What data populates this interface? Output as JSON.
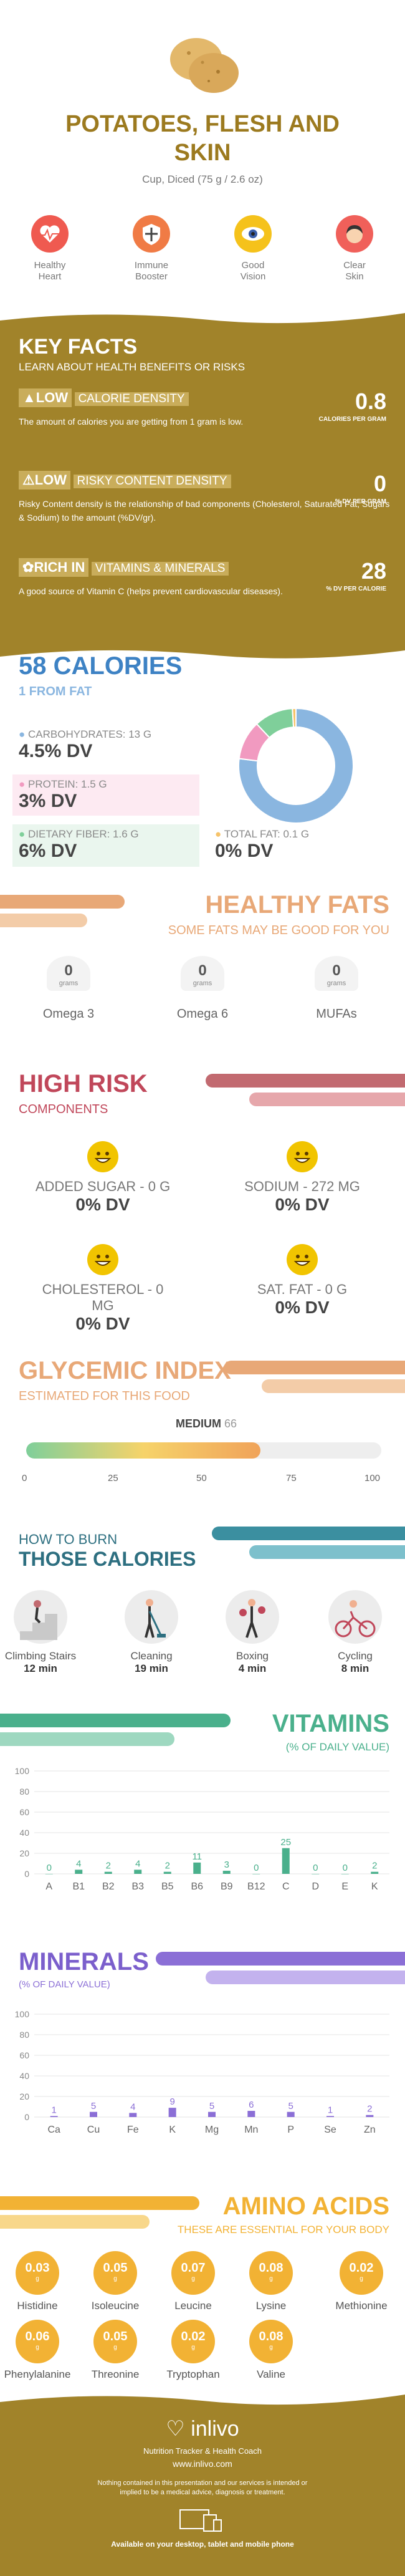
{
  "header": {
    "title_line1": "POTATOES, FLESH AND",
    "title_line2": "SKIN",
    "serving": "Cup, Diced (75 g / 2.6 oz)"
  },
  "benefits": [
    {
      "label": "Healthy\nHeart",
      "icon": "heart-monitor-icon",
      "color": "#ef5a50"
    },
    {
      "label": "Immune\nBooster",
      "icon": "shield-icon",
      "color": "#f07b45"
    },
    {
      "label": "Good\nVision",
      "icon": "eye-icon",
      "color": "#f5c21b"
    },
    {
      "label": "Clear\nSkin",
      "icon": "face-icon",
      "color": "#f0605a"
    }
  ],
  "key_facts": {
    "title": "KEY FACTS",
    "subtitle": "LEARN ABOUT HEALTH BENEFITS OR RISKS",
    "facts": [
      {
        "tag": "LOW",
        "label": "CALORIE DENSITY",
        "value": "0.8",
        "unit": "CALORIES PER GRAM",
        "desc": "The amount of calories you are getting from 1 gram is low.",
        "icon": "fire-icon"
      },
      {
        "tag": "LOW",
        "label": "RISKY CONTENT DENSITY",
        "value": "0",
        "unit": "% DV PER GRAM",
        "desc": "Risky Content density is the relationship of bad components (Cholesterol, Saturated Fat, Sugars & Sodium) to the amount (%DV/gr).",
        "icon": "warning-icon"
      },
      {
        "tag": "RICH  IN",
        "label": "VITAMINS & MINERALS",
        "value": "28",
        "unit": "% DV PER CALORIE",
        "desc": "A good source of Vitamin C (helps prevent cardiovascular diseases).",
        "icon": "leaf-icon"
      }
    ]
  },
  "calories": {
    "title": "58 CALORIES",
    "subtitle": "1 FROM FAT",
    "nutrients": [
      {
        "label": "CARBOHYDRATES: 13 g",
        "dv": "4.5% DV",
        "color": "#8ab6e0"
      },
      {
        "label": "PROTEIN: 1.5 g",
        "dv": "3% DV",
        "color": "#f19ac0"
      },
      {
        "label": "DIETARY FIBER: 1.6 g",
        "dv": "6% DV",
        "color": "#7fcf9a"
      },
      {
        "label": "TOTAL FAT: 0.1 g",
        "dv": "0% DV",
        "color": "#f6c36a"
      }
    ]
  },
  "chart_data": {
    "type": "pie",
    "categories": [
      "Carbohydrates",
      "Protein",
      "Dietary fiber",
      "Total fat"
    ],
    "values": [
      77,
      11,
      11,
      1
    ]
  },
  "healthy_fats": {
    "title": "HEALTHY FATS",
    "subtitle": "SOME FATS MAY BE GOOD FOR YOU",
    "items": [
      {
        "value": "0",
        "unit": "grams",
        "label": "Omega 3"
      },
      {
        "value": "0",
        "unit": "grams",
        "label": "Omega 6"
      },
      {
        "value": "0",
        "unit": "grams",
        "label": "MUFAs"
      }
    ]
  },
  "high_risk": {
    "title": "HIGH RISK",
    "subtitle": "COMPONENTS",
    "items": [
      {
        "label": "ADDED SUGAR - 0 g",
        "dv": "0% DV"
      },
      {
        "label": "SODIUM - 272 mg",
        "dv": "0% DV"
      },
      {
        "label": "CHOLESTEROL - 0 mg",
        "dv": "0% DV"
      },
      {
        "label": "SAT. FAT - 0 g",
        "dv": "0% DV"
      }
    ]
  },
  "glycemic": {
    "title": "GLYCEMIC INDEX",
    "subtitle": "ESTIMATED FOR THIS FOOD",
    "level": "MEDIUM",
    "value": "66",
    "fill_percent": 66,
    "ticks": [
      "0",
      "25",
      "50",
      "75",
      "100"
    ]
  },
  "burn": {
    "title1": "HOW TO BURN",
    "title2": "THOSE CALORIES",
    "items": [
      {
        "label": "Climbing Stairs",
        "time": "12 min",
        "icon": "stairs-icon"
      },
      {
        "label": "Cleaning",
        "time": "19 min",
        "icon": "cleaning-icon"
      },
      {
        "label": "Boxing",
        "time": "4 min",
        "icon": "boxing-icon"
      },
      {
        "label": "Cycling",
        "time": "8 min",
        "icon": "cycling-icon"
      }
    ]
  },
  "vitamins": {
    "title": "VITAMINS",
    "subtitle": "(% OF DAILY VALUE)",
    "y_ticks": [
      "100",
      "80",
      "60",
      "40",
      "20",
      "0"
    ],
    "categories": [
      "A",
      "B1",
      "B2",
      "B3",
      "B5",
      "B6",
      "B9",
      "B12",
      "C",
      "D",
      "E",
      "K"
    ],
    "values": [
      0,
      4,
      2,
      4,
      2,
      11,
      3,
      0,
      25,
      0,
      0,
      2
    ],
    "labels": [
      "0",
      "4",
      "2",
      "4",
      "2",
      "11",
      "3",
      "0",
      "25",
      "0",
      "0",
      "2"
    ],
    "color": "#4ab08c"
  },
  "minerals": {
    "title": "MINERALS",
    "subtitle": "(% OF DAILY VALUE)",
    "y_ticks": [
      "100",
      "80",
      "60",
      "40",
      "20",
      "0"
    ],
    "categories": [
      "Ca",
      "Cu",
      "Fe",
      "K",
      "Mg",
      "Mn",
      "P",
      "Se",
      "Zn"
    ],
    "values": [
      1,
      5,
      4,
      9,
      5,
      6,
      5,
      1,
      2
    ],
    "labels": [
      "1",
      "5",
      "4",
      "9",
      "5",
      "6",
      "5",
      "1",
      "2"
    ],
    "color": "#8b6fd6"
  },
  "amino": {
    "title": "AMINO ACIDS",
    "subtitle": "THESE ARE ESSENTIAL FOR YOUR BODY",
    "unit": "g",
    "items": [
      {
        "value": "0.03",
        "label": "Histidine"
      },
      {
        "value": "0.05",
        "label": "Isoleucine"
      },
      {
        "value": "0.07",
        "label": "Leucine"
      },
      {
        "value": "0.08",
        "label": "Lysine"
      },
      {
        "value": "0.02",
        "label": "Methionine"
      },
      {
        "value": "0.06",
        "label": "Phenylalanine"
      },
      {
        "value": "0.05",
        "label": "Threonine"
      },
      {
        "value": "0.02",
        "label": "Tryptophan"
      },
      {
        "value": "0.08",
        "label": "Valine"
      }
    ]
  },
  "footer": {
    "brand": "inlivo",
    "tagline": "Nutrition Tracker & Health Coach",
    "url": "www.inlivo.com",
    "disclaimer": "Nothing contained in this presentation and our services is intended or implied to be a medical advice, diagnosis or treatment.",
    "devices": "Available on your desktop, tablet and mobile phone"
  }
}
